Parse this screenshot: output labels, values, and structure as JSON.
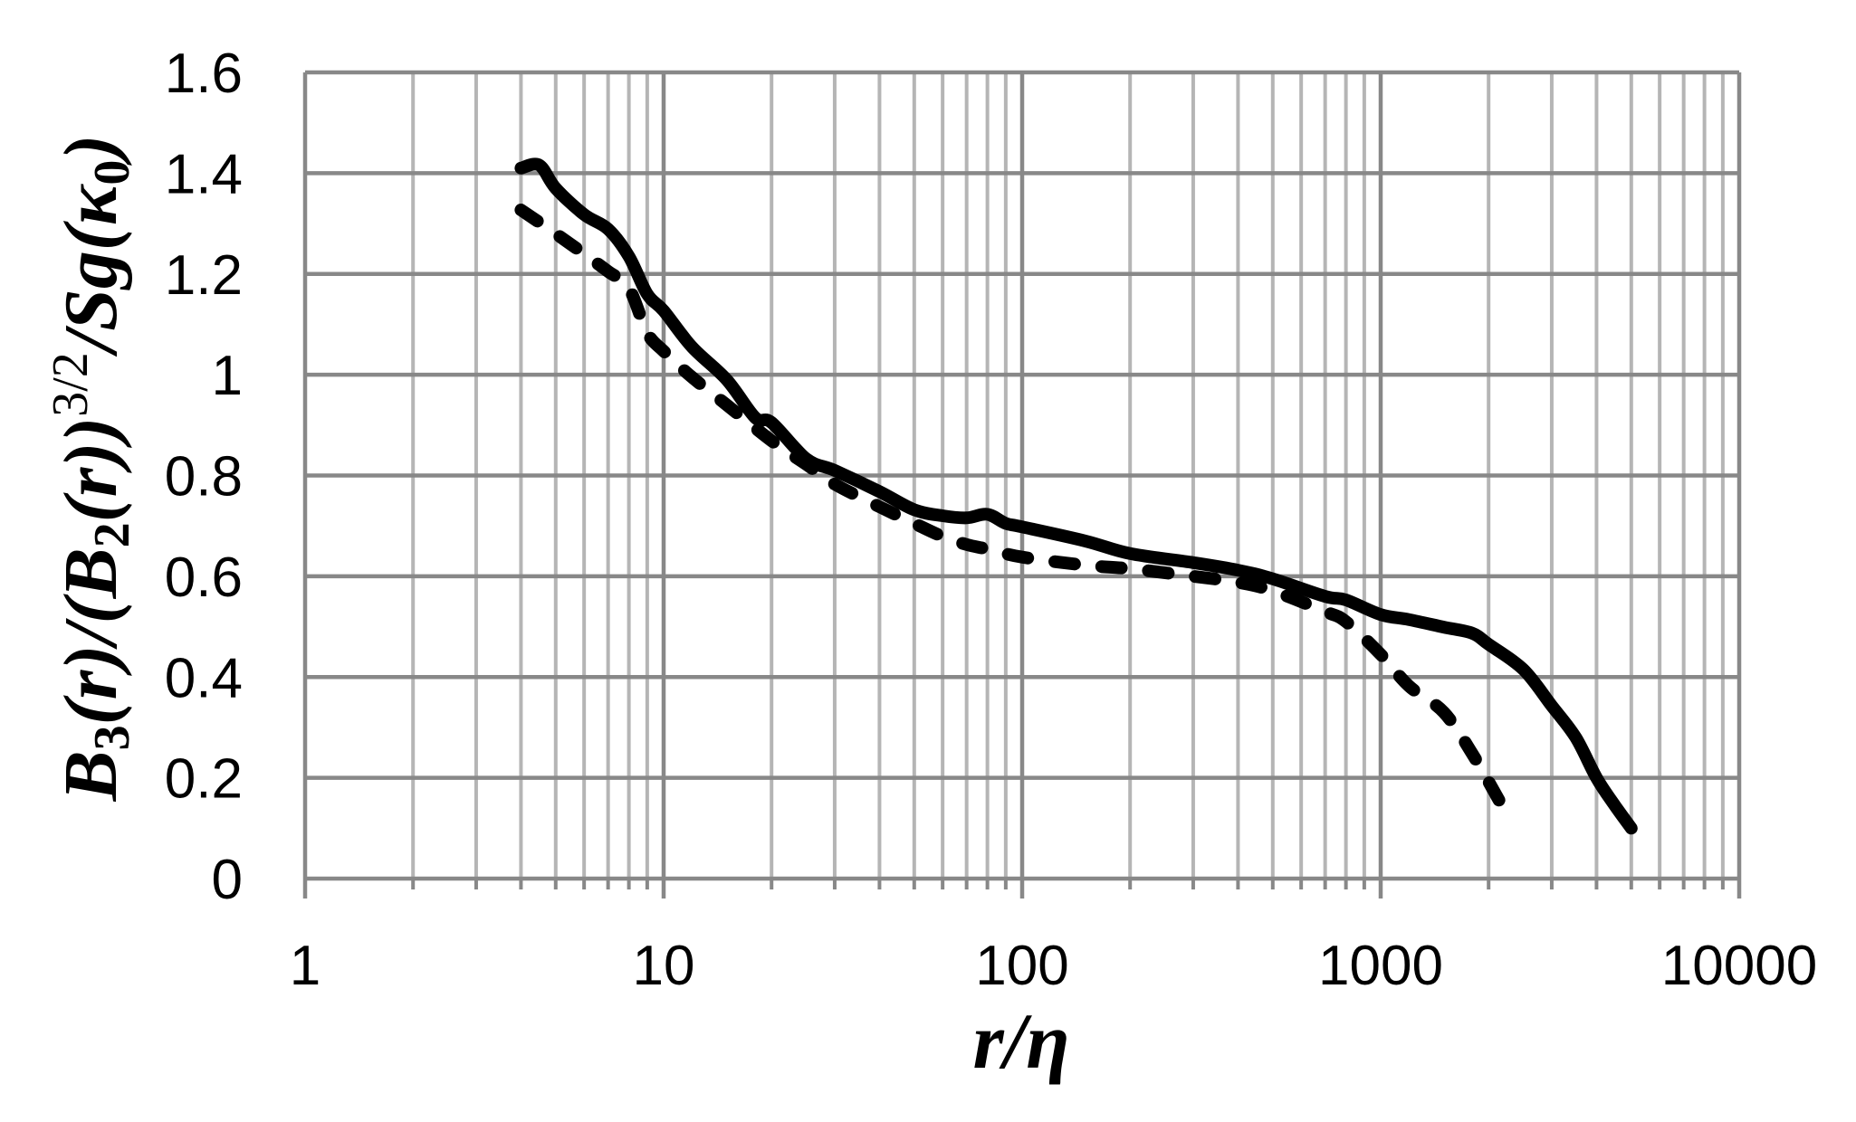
{
  "chart_data": {
    "type": "line",
    "title": "",
    "xlabel": "r/η",
    "ylabel": "B3(r)/(B2(r))^(3/2)/Sg(κ0)",
    "ylabel_parts": {
      "B3": "B",
      "sub3": "3",
      "r1": "(r)/(",
      "B2": "B",
      "sub2": "2",
      "r2": "(r))",
      "sup": "3/2",
      "tail1": "/",
      "S": "S",
      "g": "g",
      "open": "(",
      "kappa": "κ",
      "sub0": "0",
      "close": ")"
    },
    "x_scale": "log",
    "xlim": [
      1,
      10000
    ],
    "ylim": [
      0,
      1.6
    ],
    "x_ticks": [
      1,
      10,
      100,
      1000,
      10000
    ],
    "x_tick_labels": [
      "1",
      "10",
      "100",
      "1000",
      "10000"
    ],
    "y_ticks": [
      0,
      0.2,
      0.4,
      0.6,
      0.8,
      1.0,
      1.2,
      1.4,
      1.6
    ],
    "y_tick_labels": [
      "0",
      "0.2",
      "0.4",
      "0.6",
      "0.8",
      "1",
      "1.2",
      "1.4",
      "1.6"
    ],
    "grid": true,
    "minor_grid_x": true,
    "legend": null,
    "series": [
      {
        "name": "solid",
        "style": "solid",
        "color": "#000000",
        "x": [
          4,
          4.5,
          5,
          6,
          7,
          8,
          9,
          10,
          12,
          15,
          18,
          20,
          25,
          30,
          40,
          50,
          60,
          70,
          80,
          90,
          100,
          150,
          200,
          300,
          400,
          500,
          700,
          800,
          1000,
          1200,
          1500,
          1800,
          2000,
          2500,
          3000,
          3500,
          4000,
          4500,
          5000
        ],
        "y": [
          1.41,
          1.416,
          1.37,
          1.318,
          1.289,
          1.235,
          1.16,
          1.127,
          1.055,
          0.99,
          0.915,
          0.905,
          0.833,
          0.81,
          0.768,
          0.732,
          0.72,
          0.716,
          0.723,
          0.705,
          0.698,
          0.67,
          0.645,
          0.627,
          0.612,
          0.595,
          0.56,
          0.553,
          0.524,
          0.514,
          0.499,
          0.487,
          0.465,
          0.415,
          0.343,
          0.28,
          0.2,
          0.145,
          0.1
        ]
      },
      {
        "name": "dashed",
        "style": "dashed",
        "color": "#000000",
        "x": [
          4,
          5,
          6,
          7,
          8,
          9,
          10,
          12,
          15,
          20,
          25,
          30,
          40,
          50,
          60,
          70,
          80,
          100,
          150,
          200,
          300,
          400,
          500,
          700,
          800,
          1000,
          1200,
          1500,
          1800,
          2200
        ],
        "y": [
          1.327,
          1.28,
          1.24,
          1.205,
          1.172,
          1.083,
          1.047,
          0.995,
          0.94,
          0.869,
          0.822,
          0.783,
          0.738,
          0.705,
          0.679,
          0.663,
          0.654,
          0.638,
          0.622,
          0.615,
          0.6,
          0.588,
          0.571,
          0.53,
          0.51,
          0.445,
          0.382,
          0.33,
          0.248,
          0.14
        ]
      }
    ],
    "colors": {
      "major_grid": "#888888",
      "minor_grid": "#b5b5b5",
      "line": "#000000",
      "background": "#ffffff"
    }
  }
}
